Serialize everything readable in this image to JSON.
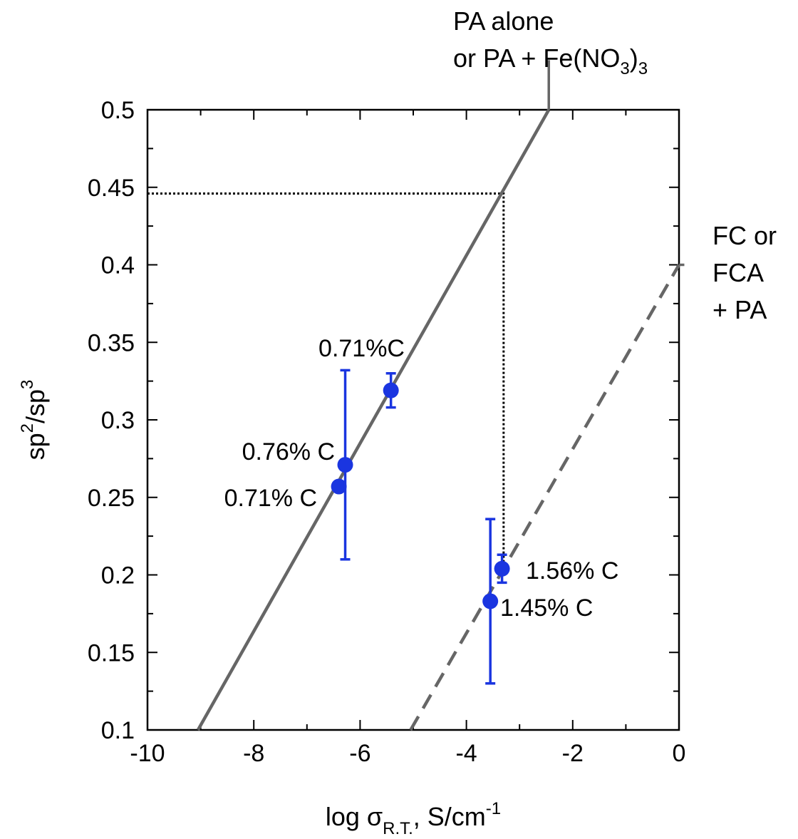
{
  "chart_data": {
    "type": "scatter",
    "xlabel": {
      "prefix": "log σ",
      "sub": "R.T.",
      "mid": ", S/cm",
      "sup": "-1"
    },
    "ylabel": {
      "base1": "sp",
      "sup1": "2",
      "mid": "/sp",
      "sup2": "3"
    },
    "xlim": [
      -10,
      0
    ],
    "ylim": [
      0.1,
      0.5
    ],
    "x_ticks": [
      -10,
      -8,
      -6,
      -4,
      -2,
      0
    ],
    "x_tick_labels": [
      "-10",
      "-8",
      "-6",
      "-4",
      "-2",
      "0"
    ],
    "y_ticks": [
      0.1,
      0.15,
      0.2,
      0.25,
      0.3,
      0.35,
      0.4,
      0.45,
      0.5
    ],
    "y_tick_labels": [
      "0.1",
      "0.15",
      "0.2",
      "0.25",
      "0.3",
      "0.35",
      "0.4",
      "0.45",
      "0.5"
    ],
    "grid": false,
    "fit_lines": [
      {
        "style": "solid",
        "color": "#666666",
        "from": [
          -9.05,
          0.1
        ],
        "to": [
          -2.45,
          0.5
        ],
        "label_lines": [
          [
            "PA alone"
          ],
          [
            "or PA + Fe(NO",
            "3",
            ")",
            "3"
          ]
        ],
        "leader_end": [
          -2.45,
          0.532
        ]
      },
      {
        "style": "dashed",
        "color": "#666666",
        "from": [
          -5.05,
          0.1
        ],
        "to": [
          0.0,
          0.4
        ],
        "label_lines": [
          [
            "FC or"
          ],
          [
            "FCA"
          ],
          [
            "+ PA"
          ]
        ],
        "leader_end": [
          0.1,
          0.4
        ]
      }
    ],
    "series": [
      {
        "color": "#1a35e0",
        "points": [
          {
            "x": -6.4,
            "y": 0.257,
            "err": null,
            "label": "0.71% C"
          },
          {
            "x": -6.28,
            "y": 0.271,
            "err": [
              0.21,
              0.332
            ],
            "label": "0.76% C"
          },
          {
            "x": -5.42,
            "y": 0.319,
            "err": [
              0.308,
              0.33
            ],
            "label": "0.71%C"
          },
          {
            "x": -3.55,
            "y": 0.183,
            "err": [
              0.13,
              0.236
            ],
            "label": "1.45% C"
          },
          {
            "x": -3.33,
            "y": 0.204,
            "err": [
              0.195,
              0.213
            ],
            "label": "1.56% C"
          }
        ]
      }
    ],
    "reference_lines": [
      {
        "style": "dotted",
        "color": "#000000",
        "from": [
          -10,
          0.446
        ],
        "corner": [
          -3.3,
          0.446
        ],
        "to": [
          -3.3,
          0.204
        ]
      }
    ]
  }
}
